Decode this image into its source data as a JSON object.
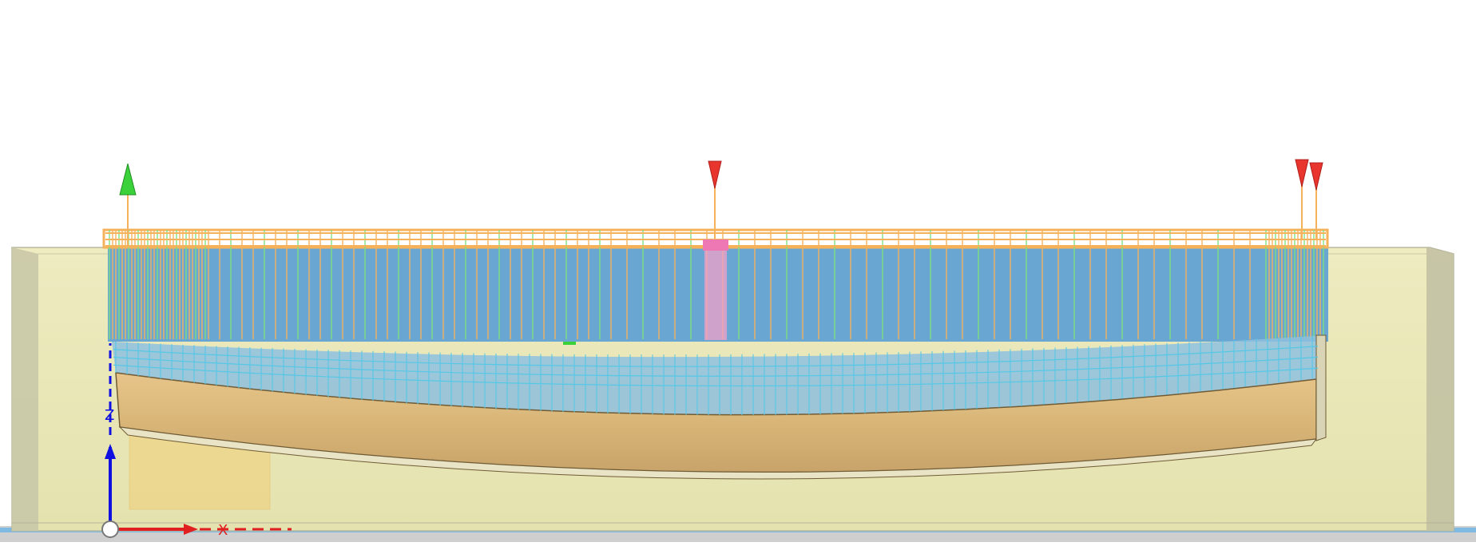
{
  "viewport": {
    "background": "#ffffff",
    "view_mode": "shaded-with-edges"
  },
  "colors": {
    "mold_fill": "#e8e6b0",
    "mold_edge": "#b9b8a0",
    "mold_end": "#c9c8a8",
    "part_top": "#6aa6d2",
    "part_body": "#d9b87a",
    "part_shadow": "#b89458",
    "mesh_orange": "#f6b25a",
    "mesh_green": "#7ee27e",
    "mesh_cyan": "#55c8e6",
    "gate_marker": "#e8352e",
    "vent_marker": "#3bd13b",
    "pink_gate": "#f0a0c8",
    "axis_x": "#e02020",
    "axis_z": "#1010e0"
  },
  "markers": [
    {
      "type": "gate",
      "icon": "red-triangle-down"
    },
    {
      "type": "gate",
      "icon": "red-triangle-down"
    },
    {
      "type": "gate",
      "icon": "red-triangle-down"
    },
    {
      "type": "vent",
      "icon": "green-arrow-up"
    }
  ],
  "axes": {
    "z_label": "Z",
    "x_label": "X"
  }
}
